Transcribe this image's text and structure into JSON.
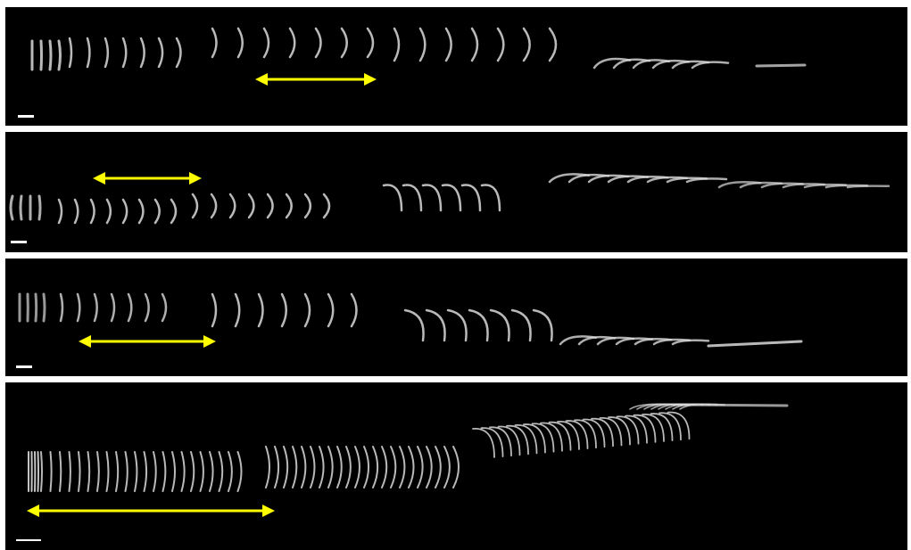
{
  "figure": {
    "panels": [
      {
        "id": "panel-1",
        "has_scale_bar": true,
        "has_arrow": true
      },
      {
        "id": "panel-2",
        "has_scale_bar": true,
        "has_arrow": true
      },
      {
        "id": "panel-3",
        "has_scale_bar": true,
        "has_arrow": true
      },
      {
        "id": "panel-4",
        "has_scale_bar": true,
        "has_arrow": true
      }
    ],
    "colors": {
      "background": "#000000",
      "separator": "#ffffff",
      "arrow": "#ffff00",
      "filament": "#d9d9d9",
      "scale_bar": "#ffffff"
    }
  }
}
